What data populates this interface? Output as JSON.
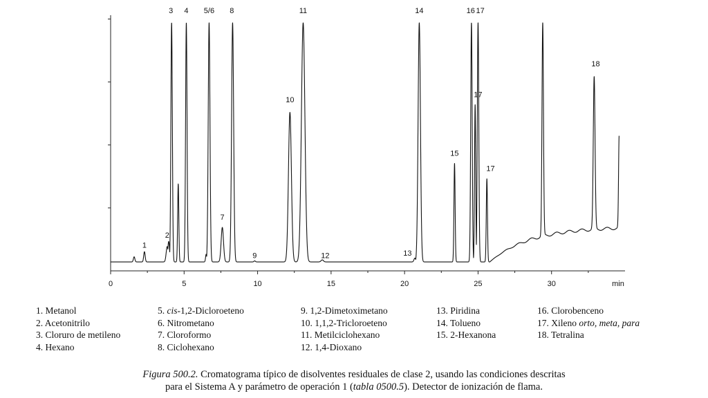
{
  "chart_data": {
    "type": "line",
    "xlabel": "min",
    "xlim": [
      0,
      35
    ],
    "xticks": [
      "0",
      "5",
      "10",
      "15",
      "20",
      "25",
      "30"
    ],
    "ylim": [
      0,
      100
    ],
    "baseline": 3.5,
    "peaks": [
      {
        "t": 1.6,
        "h": 5.5,
        "w": 0.05
      },
      {
        "t": 2.3,
        "h": 7.5,
        "w": 0.05
      },
      {
        "t": 3.85,
        "h": 9.5,
        "w": 0.07
      },
      {
        "t": 3.95,
        "h": 11.5,
        "w": 0.06
      },
      {
        "t": 4.15,
        "h": 97,
        "w": 0.05
      },
      {
        "t": 4.6,
        "h": 34,
        "w": 0.04
      },
      {
        "t": 5.15,
        "h": 97,
        "w": 0.05
      },
      {
        "t": 6.5,
        "h": 6.5,
        "w": 0.04
      },
      {
        "t": 6.7,
        "h": 97,
        "w": 0.06
      },
      {
        "t": 7.6,
        "h": 17,
        "w": 0.08
      },
      {
        "t": 8.3,
        "h": 97,
        "w": 0.07
      },
      {
        "t": 9.8,
        "h": 3.9,
        "w": 0.05
      },
      {
        "t": 12.2,
        "h": 62,
        "w": 0.1
      },
      {
        "t": 13.1,
        "h": 97,
        "w": 0.12
      },
      {
        "t": 14.4,
        "h": 4.3,
        "w": 0.08
      },
      {
        "t": 20.7,
        "h": 5,
        "w": 0.06
      },
      {
        "t": 21.0,
        "h": 97,
        "w": 0.08
      },
      {
        "t": 23.4,
        "h": 42,
        "w": 0.04
      },
      {
        "t": 24.55,
        "h": 97,
        "w": 0.05
      },
      {
        "t": 24.8,
        "h": 65,
        "w": 0.04
      },
      {
        "t": 25.0,
        "h": 97,
        "w": 0.05
      },
      {
        "t": 25.6,
        "h": 36,
        "w": 0.04
      },
      {
        "t": 29.4,
        "h": 97,
        "w": 0.05
      },
      {
        "t": 32.9,
        "h": 76,
        "w": 0.06
      },
      {
        "t": 34.6,
        "h": 53,
        "w": 0.04
      }
    ],
    "peak_labels": [
      {
        "text": "1",
        "t": 2.3,
        "y": 9
      },
      {
        "text": "2",
        "t": 3.85,
        "y": 13
      },
      {
        "text": "3",
        "t": 4.1,
        "y": 100
      },
      {
        "text": "4",
        "t": 5.15,
        "y": 100
      },
      {
        "text": "5/6",
        "t": 6.7,
        "y": 100
      },
      {
        "text": "8",
        "t": 8.25,
        "y": 100
      },
      {
        "text": "7",
        "t": 7.6,
        "y": 20
      },
      {
        "text": "9",
        "t": 9.8,
        "y": 5
      },
      {
        "text": "10",
        "t": 12.2,
        "y": 66
      },
      {
        "text": "11",
        "t": 13.1,
        "y": 100
      },
      {
        "text": "12",
        "t": 14.6,
        "y": 5
      },
      {
        "text": "13",
        "t": 20.2,
        "y": 6
      },
      {
        "text": "14",
        "t": 21.0,
        "y": 100
      },
      {
        "text": "15",
        "t": 23.4,
        "y": 45
      },
      {
        "text": "16",
        "t": 24.5,
        "y": 100
      },
      {
        "text": "17",
        "t": 25.15,
        "y": 100
      },
      {
        "text": "17",
        "t": 25.0,
        "y": 68
      },
      {
        "text": "17",
        "t": 25.85,
        "y": 39
      },
      {
        "text": "18",
        "t": 33.0,
        "y": 80
      }
    ]
  },
  "legend": {
    "col1": [
      "1. Metanol",
      "2. Acetonitrilo",
      "3. Cloruro de metileno",
      "4. Hexano"
    ],
    "col2": [
      {
        "num": "5.",
        "italic": "cis",
        "rest": "-1,2-Dicloroeteno"
      },
      {
        "num": "6.",
        "italic": "",
        "rest": "Nitrometano"
      },
      {
        "num": "7.",
        "italic": "",
        "rest": "Cloroformo"
      },
      {
        "num": "8.",
        "italic": "",
        "rest": "Ciclohexano"
      }
    ],
    "col3": [
      "9. 1,2-Dimetoximetano",
      "10. 1,1,2-Tricloroeteno",
      "11. Metilciclohexano",
      "12. 1,4-Dioxano"
    ],
    "col4": [
      "13. Piridina",
      "14. Tolueno",
      "15. 2-Hexanona"
    ],
    "col5_a": "16. Clorobenceno",
    "col5_b_prefix": "17. Xileno ",
    "col5_b_italic": "orto, meta, para",
    "col5_c": "18. Tetralina"
  },
  "caption": {
    "fig_label": "Figura 500.2.",
    "line1_rest": " Cromatograma típico de disolventes residuales de clase 2, usando las condiciones descritas",
    "line2_pre": "para el Sistema A y parámetro de operación 1 (",
    "line2_italic": "tabla 0500.5",
    "line2_post": "). Detector de ionización de flama."
  }
}
